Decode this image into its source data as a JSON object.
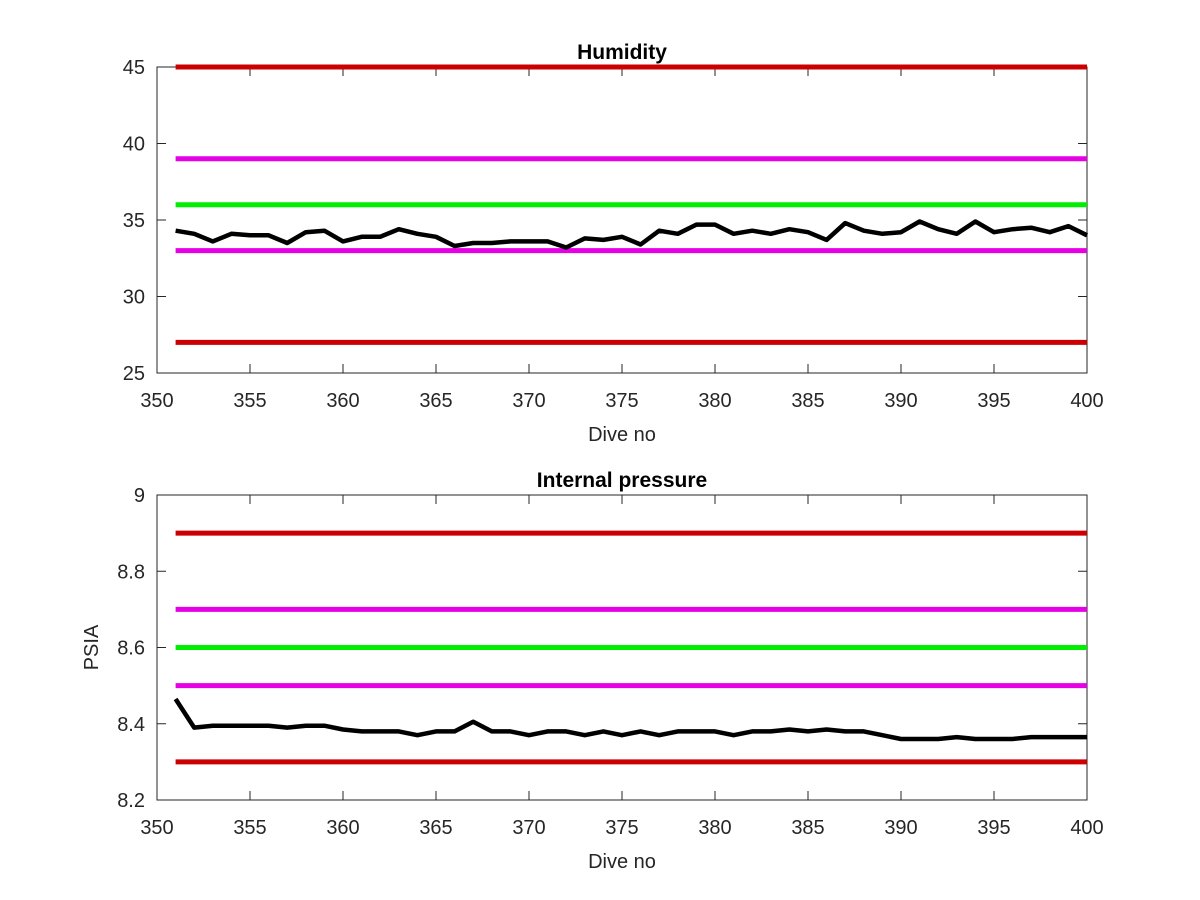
{
  "chart_data": [
    {
      "type": "line",
      "title": "Humidity",
      "xlabel": "Dive no",
      "ylabel": "",
      "xlim": [
        350,
        400
      ],
      "ylim": [
        25,
        45
      ],
      "xticks": [
        "350",
        "355",
        "360",
        "365",
        "370",
        "375",
        "380",
        "385",
        "390",
        "395",
        "400"
      ],
      "yticks": [
        "25",
        "30",
        "35",
        "40",
        "45"
      ],
      "grid": false,
      "thresholds": [
        {
          "y": 45,
          "x": [
            351,
            400
          ],
          "color": "#cc0000"
        },
        {
          "y": 39,
          "x": [
            351,
            400
          ],
          "color": "#e600e6"
        },
        {
          "y": 36,
          "x": [
            351,
            400
          ],
          "color": "#00ee00"
        },
        {
          "y": 33,
          "x": [
            351,
            400
          ],
          "color": "#e600e6"
        },
        {
          "y": 27,
          "x": [
            351,
            400
          ],
          "color": "#cc0000"
        }
      ],
      "series": [
        {
          "color": "#000000",
          "x": [
            351,
            352,
            353,
            354,
            355,
            356,
            357,
            358,
            359,
            360,
            361,
            362,
            363,
            364,
            365,
            366,
            367,
            368,
            369,
            370,
            371,
            372,
            373,
            374,
            375,
            376,
            377,
            378,
            379,
            380,
            381,
            382,
            383,
            384,
            385,
            386,
            387,
            388,
            389,
            390,
            391,
            392,
            393,
            394,
            395,
            396,
            397,
            398,
            399,
            400
          ],
          "values": [
            34.3,
            34.1,
            33.6,
            34.1,
            34.0,
            34.0,
            33.5,
            34.2,
            34.3,
            33.6,
            33.9,
            33.9,
            34.4,
            34.1,
            33.9,
            33.3,
            33.5,
            33.5,
            33.6,
            33.6,
            33.6,
            33.2,
            33.8,
            33.7,
            33.9,
            33.4,
            34.3,
            34.1,
            34.7,
            34.7,
            34.1,
            34.3,
            34.1,
            34.4,
            34.2,
            33.7,
            34.8,
            34.3,
            34.1,
            34.2,
            34.9,
            34.4,
            34.1,
            34.9,
            34.2,
            34.4,
            34.5,
            34.2,
            34.6,
            34.0
          ]
        }
      ]
    },
    {
      "type": "line",
      "title": "Internal pressure",
      "xlabel": "Dive no",
      "ylabel": "PSIA",
      "xlim": [
        350,
        400
      ],
      "ylim": [
        8.2,
        9
      ],
      "xticks": [
        "350",
        "355",
        "360",
        "365",
        "370",
        "375",
        "380",
        "385",
        "390",
        "395",
        "400"
      ],
      "yticks": [
        "8.2",
        "8.4",
        "8.6",
        "8.8",
        "9"
      ],
      "grid": false,
      "thresholds": [
        {
          "y": 8.9,
          "x": [
            351,
            400
          ],
          "color": "#cc0000"
        },
        {
          "y": 8.7,
          "x": [
            351,
            400
          ],
          "color": "#e600e6"
        },
        {
          "y": 8.6,
          "x": [
            351,
            400
          ],
          "color": "#00ee00"
        },
        {
          "y": 8.5,
          "x": [
            351,
            400
          ],
          "color": "#e600e6"
        },
        {
          "y": 8.3,
          "x": [
            351,
            400
          ],
          "color": "#cc0000"
        }
      ],
      "series": [
        {
          "color": "#000000",
          "x": [
            351,
            352,
            353,
            354,
            355,
            356,
            357,
            358,
            359,
            360,
            361,
            362,
            363,
            364,
            365,
            366,
            367,
            368,
            369,
            370,
            371,
            372,
            373,
            374,
            375,
            376,
            377,
            378,
            379,
            380,
            381,
            382,
            383,
            384,
            385,
            386,
            387,
            388,
            389,
            390,
            391,
            392,
            393,
            394,
            395,
            396,
            397,
            398,
            399,
            400
          ],
          "values": [
            8.465,
            8.39,
            8.395,
            8.395,
            8.395,
            8.395,
            8.39,
            8.395,
            8.395,
            8.385,
            8.38,
            8.38,
            8.38,
            8.37,
            8.38,
            8.38,
            8.405,
            8.38,
            8.38,
            8.37,
            8.38,
            8.38,
            8.37,
            8.38,
            8.37,
            8.38,
            8.37,
            8.38,
            8.38,
            8.38,
            8.37,
            8.38,
            8.38,
            8.385,
            8.38,
            8.385,
            8.38,
            8.38,
            8.37,
            8.36,
            8.36,
            8.36,
            8.365,
            8.36,
            8.36,
            8.36,
            8.365,
            8.365,
            8.365,
            8.365
          ]
        }
      ]
    }
  ]
}
